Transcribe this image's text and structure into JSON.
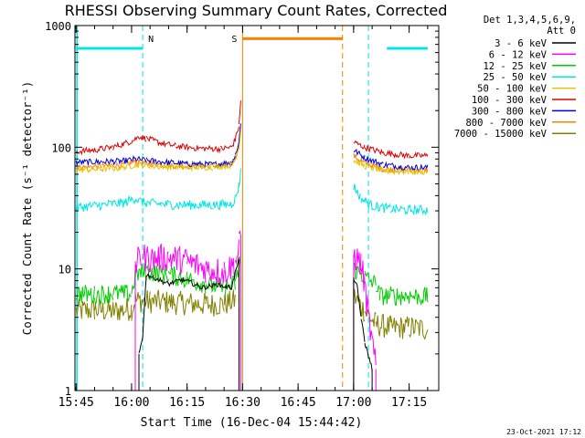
{
  "chart_data": {
    "type": "line",
    "title": "RHESSI Observing Summary Count Rates, Corrected",
    "xlabel": "Start Time (16-Dec-04 15:44:42)",
    "ylabel": "Corrected Count Rate (s⁻¹ detector⁻¹)",
    "yscale": "log",
    "ylim": [
      1,
      1000
    ],
    "yticks": [
      1,
      10,
      100,
      1000
    ],
    "ytick_labels": [
      "1",
      "10",
      "100",
      "1000"
    ],
    "xlim": [
      "15:44:42",
      "17:23"
    ],
    "xticks": [
      "15:45",
      "16:00",
      "16:15",
      "16:30",
      "16:45",
      "17:00",
      "17:15"
    ],
    "legend_title": [
      "Det 1,3,4,5,6,9,",
      "Att 0"
    ],
    "legend_position": "right",
    "series": [
      {
        "name": "3 - 6 keV",
        "color": "#000000",
        "points": [
          [
            "15:45",
            null
          ],
          [
            "16:02",
            2.0
          ],
          [
            "16:03",
            2.8
          ],
          [
            "16:04",
            9.0
          ],
          [
            "16:06",
            8.5
          ],
          [
            "16:10",
            7.5
          ],
          [
            "16:14",
            8.2
          ],
          [
            "16:19",
            7.0
          ],
          [
            "16:23",
            7.4
          ],
          [
            "16:27",
            7.0
          ],
          [
            "16:29",
            12.0
          ],
          [
            "16:29:30",
            null
          ],
          [
            "17:00",
            8.5
          ],
          [
            "17:01",
            7.0
          ],
          [
            "17:02",
            4.0
          ],
          [
            "17:03",
            2.5
          ],
          [
            "17:05",
            1.5
          ],
          [
            "17:06",
            null
          ]
        ]
      },
      {
        "name": "6 - 12 keV",
        "color": "#ff00ff",
        "points": [
          [
            "15:45",
            null
          ],
          [
            "16:01",
            11.0
          ],
          [
            "16:03",
            12.5
          ],
          [
            "16:05",
            12.0
          ],
          [
            "16:10",
            12.5
          ],
          [
            "16:15",
            11.5
          ],
          [
            "16:20",
            10.0
          ],
          [
            "16:25",
            9.5
          ],
          [
            "16:28",
            11.0
          ],
          [
            "16:29",
            15.0
          ],
          [
            "16:29:30",
            19.0
          ],
          [
            "16:29:50",
            null
          ],
          [
            "17:00",
            13.0
          ],
          [
            "17:02",
            11.0
          ],
          [
            "17:03",
            7.5
          ],
          [
            "17:04",
            4.0
          ],
          [
            "17:06",
            1.5
          ],
          [
            "17:07",
            null
          ]
        ]
      },
      {
        "name": "12 - 25 keV",
        "color": "#00cc00",
        "points": [
          [
            "15:45",
            6.3
          ],
          [
            "15:50",
            6.1
          ],
          [
            "15:55",
            6.3
          ],
          [
            "16:00",
            6.2
          ],
          [
            "16:01",
            9.0
          ],
          [
            "16:04",
            9.5
          ],
          [
            "16:10",
            9.0
          ],
          [
            "16:15",
            8.2
          ],
          [
            "16:20",
            7.5
          ],
          [
            "16:25",
            7.0
          ],
          [
            "16:28",
            7.5
          ],
          [
            "16:29",
            10.0
          ],
          [
            "16:29:30",
            13.0
          ],
          [
            "16:29:50",
            null
          ],
          [
            "17:00",
            10.0
          ],
          [
            "17:03",
            8.5
          ],
          [
            "17:06",
            7.5
          ],
          [
            "17:07",
            6.0
          ],
          [
            "17:15",
            6.0
          ],
          [
            "17:20",
            5.9
          ]
        ]
      },
      {
        "name": "25 - 50 keV",
        "color": "#00e5e5",
        "points": [
          [
            "15:45",
            32.0
          ],
          [
            "15:52",
            33.5
          ],
          [
            "15:58",
            35.0
          ],
          [
            "16:01",
            38.0
          ],
          [
            "16:03",
            35.0
          ],
          [
            "16:08",
            34.0
          ],
          [
            "16:15",
            33.5
          ],
          [
            "16:22",
            33.5
          ],
          [
            "16:27",
            34.0
          ],
          [
            "16:28",
            38.0
          ],
          [
            "16:29",
            48.0
          ],
          [
            "16:29:30",
            65.0
          ],
          [
            "16:29:50",
            null
          ],
          [
            "17:00",
            48.0
          ],
          [
            "17:02",
            38.0
          ],
          [
            "17:05",
            33.0
          ],
          [
            "17:10",
            31.0
          ],
          [
            "17:15",
            30.5
          ],
          [
            "17:20",
            30.5
          ]
        ]
      },
      {
        "name": "50 - 100 keV",
        "color": "#e6c200",
        "points": [
          [
            "15:45",
            65.0
          ],
          [
            "15:52",
            66.0
          ],
          [
            "15:58",
            68.0
          ],
          [
            "16:01",
            72.0
          ],
          [
            "16:05",
            70.0
          ],
          [
            "16:10",
            69.0
          ],
          [
            "16:15",
            68.5
          ],
          [
            "16:22",
            68.5
          ],
          [
            "16:27",
            71.0
          ],
          [
            "16:28",
            80.0
          ],
          [
            "16:29",
            100.0
          ],
          [
            "16:29:30",
            140.0
          ],
          [
            "16:29:50",
            null
          ],
          [
            "17:00",
            78.0
          ],
          [
            "17:03",
            70.0
          ],
          [
            "17:08",
            64.0
          ],
          [
            "17:15",
            63.0
          ],
          [
            "17:20",
            62.5
          ]
        ]
      },
      {
        "name": "100 - 300 keV",
        "color": "#dd0000",
        "points": [
          [
            "15:45",
            92.0
          ],
          [
            "15:50",
            95.0
          ],
          [
            "15:55",
            100.0
          ],
          [
            "16:00",
            112.0
          ],
          [
            "16:02",
            122.0
          ],
          [
            "16:04",
            118.0
          ],
          [
            "16:08",
            108.0
          ],
          [
            "16:12",
            102.0
          ],
          [
            "16:18",
            98.0
          ],
          [
            "16:24",
            97.0
          ],
          [
            "16:27",
            100.0
          ],
          [
            "16:28",
            115.0
          ],
          [
            "16:29",
            150.0
          ],
          [
            "16:29:30",
            240.0
          ],
          [
            "16:29:50",
            null
          ],
          [
            "17:00",
            110.0
          ],
          [
            "17:03",
            100.0
          ],
          [
            "17:08",
            90.0
          ],
          [
            "17:15",
            85.0
          ],
          [
            "17:20",
            85.0
          ]
        ]
      },
      {
        "name": "300 - 800 keV",
        "color": "#0000dd",
        "points": [
          [
            "15:45",
            75.0
          ],
          [
            "15:52",
            76.0
          ],
          [
            "15:58",
            77.0
          ],
          [
            "16:01",
            80.0
          ],
          [
            "16:04",
            78.0
          ],
          [
            "16:10",
            75.0
          ],
          [
            "16:15",
            73.0
          ],
          [
            "16:22",
            72.0
          ],
          [
            "16:27",
            75.0
          ],
          [
            "16:28",
            85.0
          ],
          [
            "16:29",
            110.0
          ],
          [
            "16:29:30",
            160.0
          ],
          [
            "16:29:50",
            null
          ],
          [
            "17:00",
            95.0
          ],
          [
            "17:03",
            82.0
          ],
          [
            "17:08",
            72.0
          ],
          [
            "17:15",
            68.0
          ],
          [
            "17:20",
            68.0
          ]
        ]
      },
      {
        "name": "800 - 7000 keV",
        "color": "#ff8000",
        "points": [
          [
            "15:45",
            68.0
          ],
          [
            "15:52",
            70.0
          ],
          [
            "15:58",
            72.0
          ],
          [
            "16:01",
            76.0
          ],
          [
            "16:04",
            74.0
          ],
          [
            "16:10",
            71.0
          ],
          [
            "16:15",
            70.0
          ],
          [
            "16:22",
            70.0
          ],
          [
            "16:27",
            72.0
          ],
          [
            "16:28",
            82.0
          ],
          [
            "16:29",
            105.0
          ],
          [
            "16:29:30",
            150.0
          ],
          [
            "16:29:50",
            null
          ],
          [
            "17:00",
            85.0
          ],
          [
            "17:03",
            74.0
          ],
          [
            "17:08",
            66.0
          ],
          [
            "17:15",
            65.0
          ],
          [
            "17:20",
            65.0
          ]
        ]
      },
      {
        "name": "7000 - 15000 keV",
        "color": "#808000",
        "points": [
          [
            "15:45",
            4.5
          ],
          [
            "15:50",
            4.6
          ],
          [
            "15:55",
            4.5
          ],
          [
            "16:00",
            4.7
          ],
          [
            "16:01",
            5.5
          ],
          [
            "16:05",
            5.4
          ],
          [
            "16:10",
            5.3
          ],
          [
            "16:15",
            5.2
          ],
          [
            "16:20",
            5.1
          ],
          [
            "16:25",
            5.1
          ],
          [
            "16:28",
            5.5
          ],
          [
            "16:29:50",
            null
          ],
          [
            "17:00",
            6.0
          ],
          [
            "17:03",
            4.5
          ],
          [
            "17:06",
            3.5
          ],
          [
            "17:10",
            3.3
          ],
          [
            "17:15",
            3.3
          ],
          [
            "17:20",
            3.2
          ]
        ]
      }
    ],
    "annotations": [
      {
        "label": "N",
        "color": "#00e5e5",
        "x_start": "16:03",
        "x_end": "17:04",
        "bars": [
          [
            "15:45",
            "16:03"
          ],
          [
            "17:09",
            "17:20"
          ]
        ],
        "level": 650
      },
      {
        "label": "S",
        "color": "#ff8000",
        "x_start": "16:30",
        "x_end": "16:57",
        "bars": [
          [
            "16:30",
            "16:57"
          ]
        ],
        "level": 780
      }
    ],
    "orbit_marker": {
      "x": "15:45",
      "color": "#00e5e5"
    },
    "grid": false
  },
  "footer": {
    "timestamp": "23-Oct-2021 17:12"
  }
}
